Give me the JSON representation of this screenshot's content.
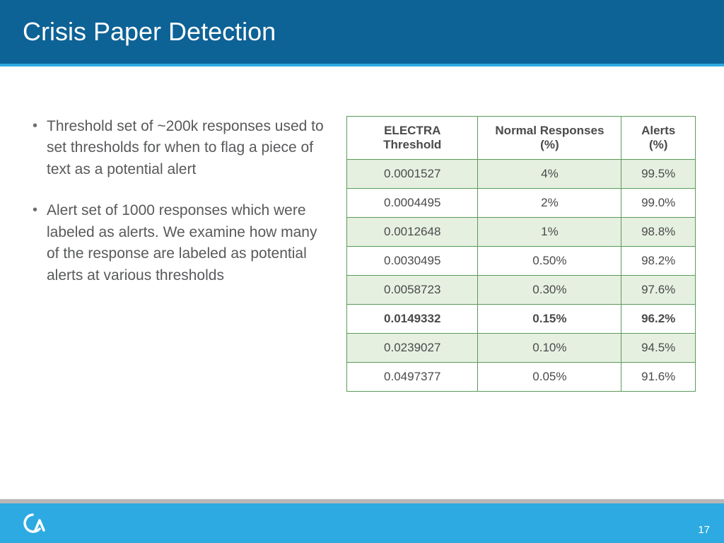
{
  "title": "Crisis Paper Detection",
  "bullets": [
    "Threshold set of ~200k responses used to set thresholds for when to flag a piece of text as a potential alert",
    "Alert set of 1000 responses which were labeled as alerts. We examine how many of the response are labeled as potential alerts at various thresholds"
  ],
  "table": {
    "columns": [
      "ELECTRA Threshold",
      "Normal Responses (%)",
      "Alerts (%)"
    ],
    "rows": [
      {
        "cells": [
          "0.0001527",
          "4%",
          "99.5%"
        ],
        "shade": true,
        "bold": false
      },
      {
        "cells": [
          "0.0004495",
          "2%",
          "99.0%"
        ],
        "shade": false,
        "bold": false
      },
      {
        "cells": [
          "0.0012648",
          "1%",
          "98.8%"
        ],
        "shade": true,
        "bold": false
      },
      {
        "cells": [
          "0.0030495",
          "0.50%",
          "98.2%"
        ],
        "shade": false,
        "bold": false
      },
      {
        "cells": [
          "0.0058723",
          "0.30%",
          "97.6%"
        ],
        "shade": true,
        "bold": false
      },
      {
        "cells": [
          "0.0149332",
          "0.15%",
          "96.2%"
        ],
        "shade": false,
        "bold": true
      },
      {
        "cells": [
          "0.0239027",
          "0.10%",
          "94.5%"
        ],
        "shade": true,
        "bold": false
      },
      {
        "cells": [
          "0.0497377",
          "0.05%",
          "91.6%"
        ],
        "shade": false,
        "bold": false
      }
    ],
    "border_color": "#5b9b57",
    "shade_color": "#e5f0e1"
  },
  "page_number": "17",
  "colors": {
    "title_bg": "#0d6296",
    "accent": "#2daae1",
    "footer_grey": "#b7b7b7",
    "text": "#58595b"
  }
}
